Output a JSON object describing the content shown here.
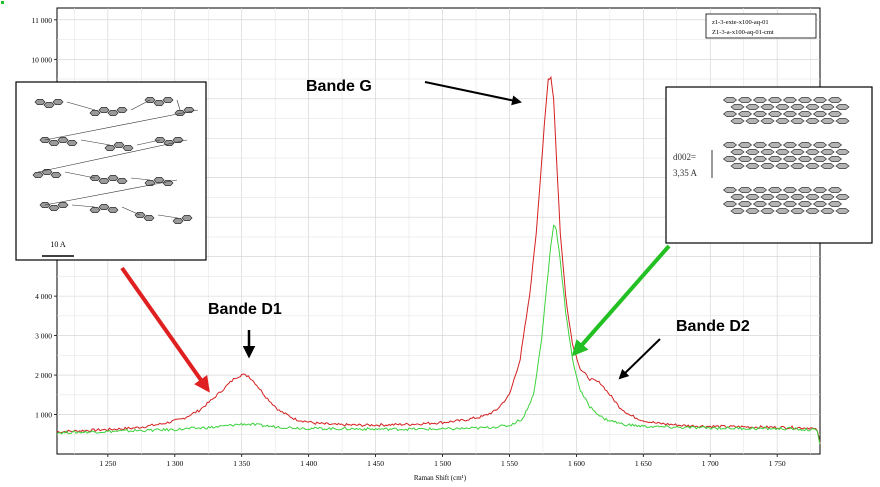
{
  "chart_data": {
    "type": "line",
    "title": "",
    "xlabel": "Raman Shift (cm¹)",
    "ylabel": "",
    "xlim": [
      1212,
      1782
    ],
    "ylim": [
      0,
      11300
    ],
    "x_ticks": [
      1250,
      1300,
      1350,
      1400,
      1450,
      1500,
      1550,
      1600,
      1650,
      1700,
      1750
    ],
    "x_tick_labels": [
      "1 250",
      "1 300",
      "1 350",
      "1 400",
      "1 450",
      "1 500",
      "1 550",
      "1 600",
      "1 650",
      "1 700",
      "1 750"
    ],
    "y_ticks": [
      1000,
      2000,
      3000,
      4000,
      10000,
      11000
    ],
    "y_tick_labels": [
      "1 000",
      "2 000",
      "3 000",
      "4 000",
      "10 000",
      "11 000"
    ],
    "grid": true,
    "legend_position": "top-right",
    "series": [
      {
        "name": "z1-3-exte-x100-aq-01",
        "color": "#d42020",
        "x": [
          1212,
          1230,
          1250,
          1270,
          1290,
          1305,
          1318,
          1328,
          1338,
          1345,
          1350,
          1355,
          1360,
          1368,
          1378,
          1390,
          1405,
          1420,
          1440,
          1460,
          1480,
          1500,
          1515,
          1530,
          1540,
          1550,
          1558,
          1565,
          1570,
          1574,
          1577,
          1579,
          1581,
          1583,
          1585,
          1588,
          1592,
          1597,
          1603,
          1610,
          1618,
          1625,
          1632,
          1640,
          1650,
          1660,
          1680,
          1700,
          1720,
          1740,
          1760,
          1775,
          1780,
          1782
        ],
        "y": [
          560,
          590,
          620,
          660,
          760,
          880,
          1100,
          1380,
          1700,
          1930,
          2010,
          1980,
          1800,
          1450,
          1100,
          880,
          780,
          740,
          730,
          740,
          760,
          800,
          850,
          950,
          1100,
          1500,
          2400,
          4000,
          5600,
          7400,
          8700,
          9500,
          9550,
          9000,
          7600,
          5600,
          4000,
          2800,
          2150,
          1900,
          1800,
          1500,
          1200,
          980,
          850,
          780,
          720,
          700,
          690,
          680,
          670,
          660,
          600,
          250
        ]
      },
      {
        "name": "Z1-3-a-x100-aq-01-cmt",
        "color": "#3cd23c",
        "x": [
          1212,
          1250,
          1300,
          1330,
          1345,
          1352,
          1360,
          1375,
          1400,
          1450,
          1500,
          1530,
          1550,
          1560,
          1568,
          1574,
          1578,
          1581,
          1583,
          1585,
          1588,
          1592,
          1597,
          1603,
          1610,
          1620,
          1635,
          1650,
          1680,
          1720,
          1760,
          1780,
          1782
        ],
        "y": [
          540,
          570,
          620,
          680,
          740,
          760,
          740,
          690,
          650,
          630,
          630,
          660,
          720,
          900,
          1500,
          2900,
          4300,
          5300,
          5800,
          5700,
          4900,
          3600,
          2400,
          1600,
          1200,
          900,
          750,
          700,
          670,
          650,
          640,
          600,
          250
        ]
      }
    ],
    "annotations": [
      "Bande G",
      "Bande D1",
      "Bande D2"
    ]
  },
  "insets": {
    "left_scale_label": "10 A",
    "right_label_line1": "d002=",
    "right_label_line2": "3,35 A"
  }
}
